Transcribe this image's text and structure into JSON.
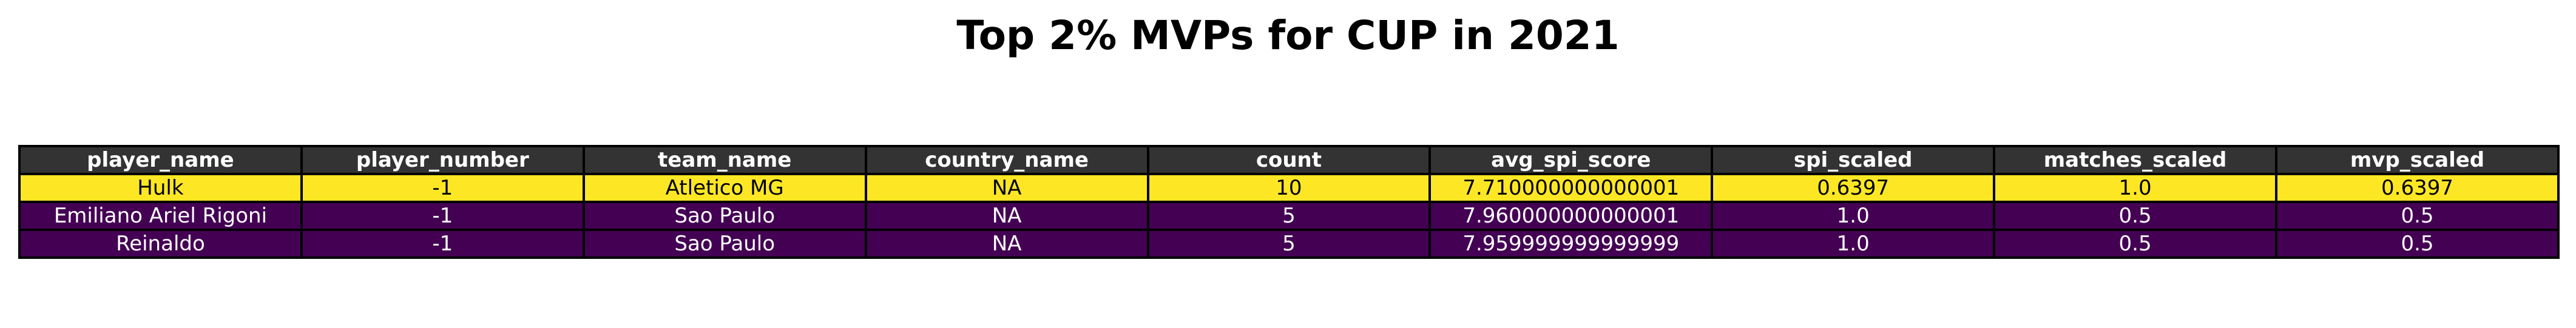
{
  "title": "Top 2% MVPs for CUP in 2021",
  "colors": {
    "header_bg": "#333333",
    "header_text": "#ffffff",
    "highlight_row_bg": "#fde725",
    "highlight_row_text": "#000000",
    "normal_row_bg": "#440154",
    "normal_row_text": "#ffffff",
    "border": "#000000"
  },
  "chart_data": {
    "type": "table",
    "title": "Top 2% MVPs for CUP in 2021",
    "columns": [
      "player_name",
      "player_number",
      "team_name",
      "country_name",
      "count",
      "avg_spi_score",
      "spi_scaled",
      "matches_scaled",
      "mvp_scaled"
    ],
    "rows": [
      [
        "Hulk",
        "-1",
        "Atletico MG",
        "NA",
        "10",
        "7.710000000000001",
        "0.6397",
        "1.0",
        "0.6397"
      ],
      [
        "Emiliano Ariel Rigoni",
        "-1",
        "Sao Paulo",
        "NA",
        "5",
        "7.960000000000001",
        "1.0",
        "0.5",
        "0.5"
      ],
      [
        "Reinaldo",
        "-1",
        "Sao Paulo",
        "NA",
        "5",
        "7.959999999999999",
        "1.0",
        "0.5",
        "0.5"
      ]
    ],
    "row_colors": [
      "#fde725",
      "#440154",
      "#440154"
    ],
    "row_text_colors": [
      "#000000",
      "#ffffff",
      "#ffffff"
    ]
  }
}
